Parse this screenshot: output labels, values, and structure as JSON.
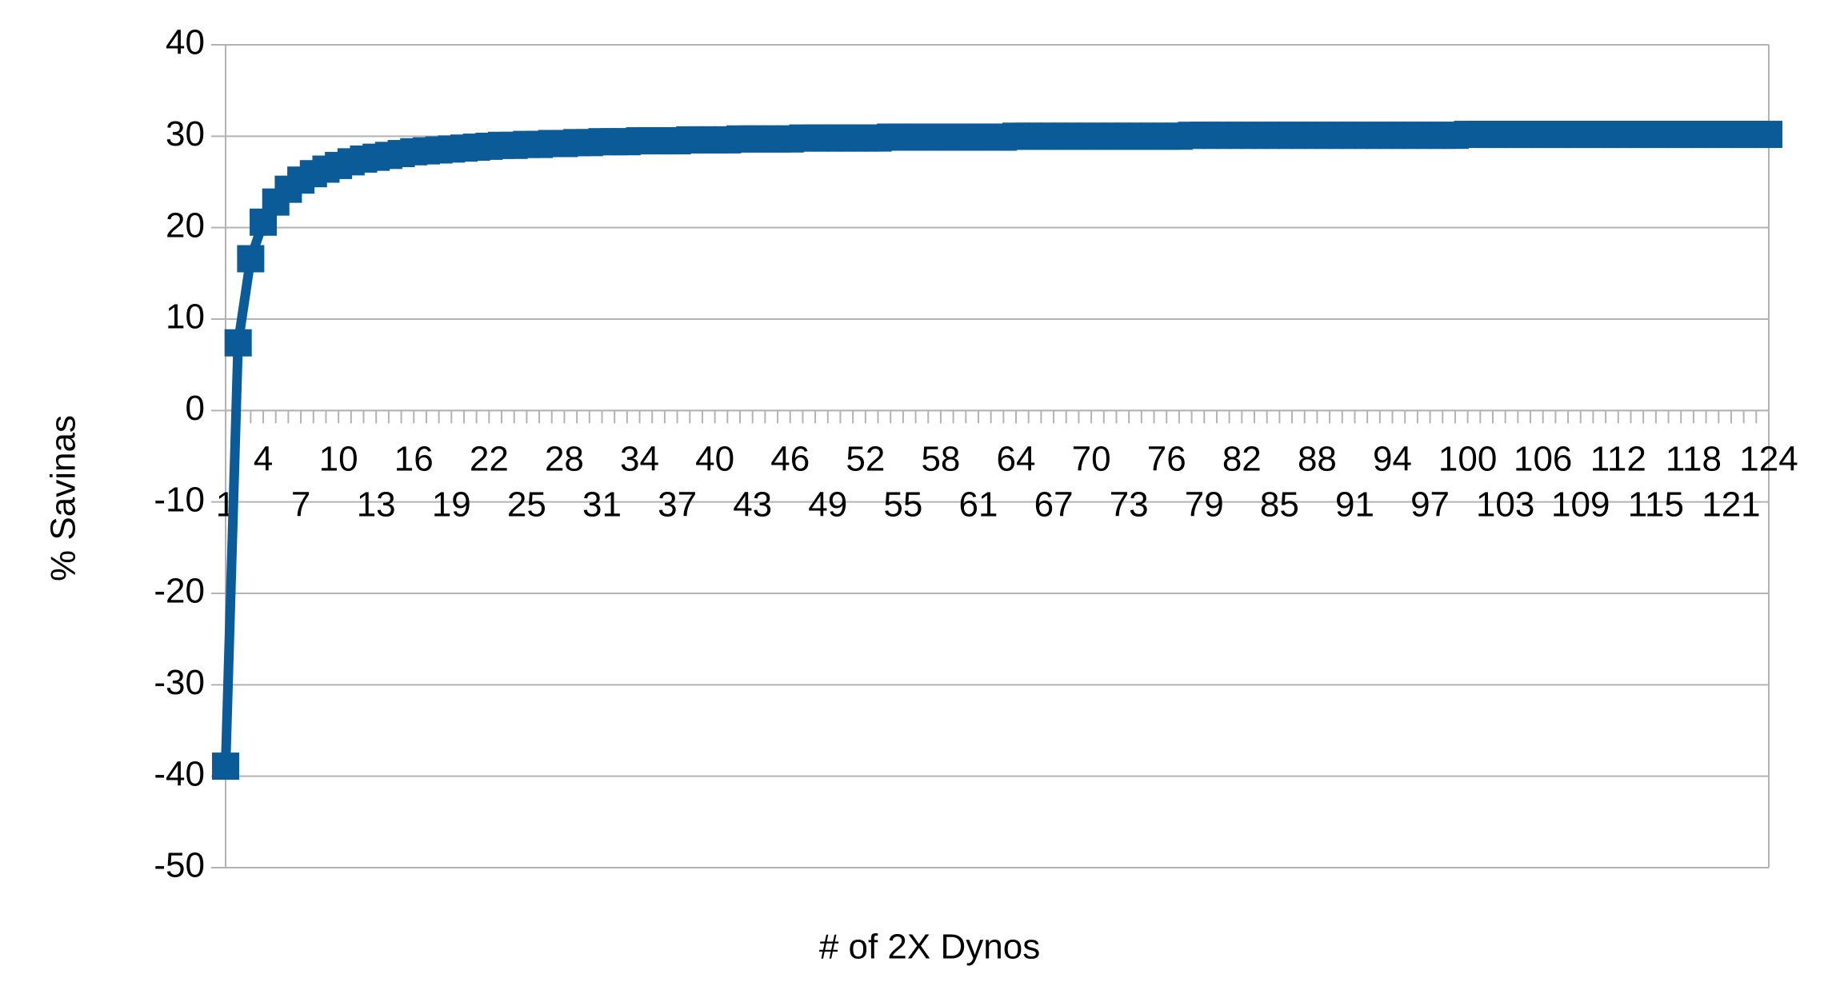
{
  "chart_data": {
    "type": "line",
    "y_label": "% Savinas",
    "x_label": "# of 2X Dynos",
    "categories": [
      1,
      null,
      null,
      4,
      null,
      null,
      7,
      null,
      null,
      10,
      null,
      null,
      13,
      null,
      null,
      16,
      null,
      null,
      19,
      null,
      null,
      22,
      null,
      null,
      25,
      null,
      null,
      28,
      null,
      null,
      31,
      null,
      null,
      34,
      null,
      null,
      37,
      null,
      null,
      40,
      null,
      null,
      43,
      null,
      null,
      46,
      null,
      null,
      49,
      null,
      null,
      52,
      null,
      null,
      55,
      null,
      null,
      58,
      null,
      null,
      61,
      null,
      null,
      64,
      null,
      null,
      67,
      null,
      null,
      70,
      null,
      null,
      73,
      null,
      null,
      76,
      null,
      null,
      79,
      null,
      null,
      82,
      null,
      null,
      85,
      null,
      null,
      88,
      null,
      null,
      91,
      null,
      null,
      94,
      null,
      null,
      97,
      null,
      null,
      100,
      null,
      null,
      103,
      null,
      null,
      106,
      null,
      null,
      109,
      null,
      null,
      112,
      null,
      null,
      115,
      null,
      null,
      118,
      null,
      null,
      121,
      null,
      null,
      124
    ],
    "series": [
      {
        "color": "#0b5b98",
        "values": [
          -38.9,
          7.4,
          16.6,
          20.6,
          22.8,
          24.2,
          25.2,
          25.9,
          26.4,
          26.8,
          27.2,
          27.5,
          27.7,
          27.9,
          28.1,
          28.3,
          28.4,
          28.5,
          28.6,
          28.7,
          28.8,
          28.9,
          29.0,
          29.0,
          29.1,
          29.1,
          29.2,
          29.2,
          29.3,
          29.3,
          29.4,
          29.4,
          29.4,
          29.5,
          29.5,
          29.5,
          29.5,
          29.6,
          29.6,
          29.6,
          29.6,
          29.7,
          29.7,
          29.7,
          29.7,
          29.7,
          29.8,
          29.8,
          29.8,
          29.8,
          29.8,
          29.8,
          29.8,
          29.9,
          29.9,
          29.9,
          29.9,
          29.9,
          29.9,
          29.9,
          29.9,
          29.9,
          29.9,
          30.0,
          30.0,
          30.0,
          30.0,
          30.0,
          30.0,
          30.0,
          30.0,
          30.0,
          30.0,
          30.0,
          30.0,
          30.0,
          30.0,
          30.1,
          30.1,
          30.1,
          30.1,
          30.1,
          30.1,
          30.1,
          30.1,
          30.1,
          30.1,
          30.1,
          30.1,
          30.1,
          30.1,
          30.1,
          30.1,
          30.1,
          30.1,
          30.1,
          30.1,
          30.1,
          30.1,
          30.2,
          30.2,
          30.2,
          30.2,
          30.2,
          30.2,
          30.2,
          30.2,
          30.2,
          30.2,
          30.2,
          30.2,
          30.2,
          30.2,
          30.2,
          30.2,
          30.2,
          30.2,
          30.2,
          30.2,
          30.2,
          30.2,
          30.2,
          30.2,
          30.2
        ]
      }
    ],
    "ylim": [
      -50,
      40
    ],
    "yticks": [
      -50,
      -40,
      -30,
      -20,
      -10,
      0,
      10,
      20,
      30,
      40
    ],
    "grid": true
  }
}
